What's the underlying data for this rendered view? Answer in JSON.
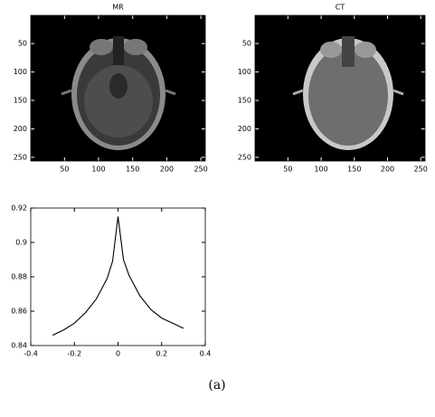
{
  "charts": [
    {
      "type": "image",
      "title": "MR",
      "xlim": [
        0.5,
        256.5
      ],
      "ylim": [
        256.5,
        0.5
      ],
      "xticks": [
        50,
        100,
        150,
        200,
        250
      ],
      "yticks": [
        50,
        100,
        150,
        200,
        250
      ]
    },
    {
      "type": "image",
      "title": "CT",
      "xlim": [
        0.5,
        256.5
      ],
      "ylim": [
        256.5,
        0.5
      ],
      "xticks": [
        50,
        100,
        150,
        200,
        250
      ],
      "yticks": [
        50,
        100,
        150,
        200,
        250
      ]
    },
    {
      "type": "line",
      "x": [
        -0.3,
        -0.25,
        -0.2,
        -0.15,
        -0.1,
        -0.05,
        -0.025,
        0,
        0.025,
        0.05,
        0.1,
        0.15,
        0.2,
        0.25,
        0.3
      ],
      "values": [
        0.846,
        0.849,
        0.853,
        0.859,
        0.867,
        0.879,
        0.889,
        0.915,
        0.89,
        0.881,
        0.869,
        0.861,
        0.856,
        0.853,
        0.85
      ],
      "color": "#000000",
      "xlim": [
        -0.4,
        0.4
      ],
      "ylim": [
        0.84,
        0.92
      ],
      "xticks": [
        -0.4,
        -0.2,
        0,
        0.2,
        0.4
      ],
      "yticks": [
        0.84,
        0.86,
        0.88,
        0.9,
        0.92
      ]
    }
  ],
  "caption": "(a)"
}
